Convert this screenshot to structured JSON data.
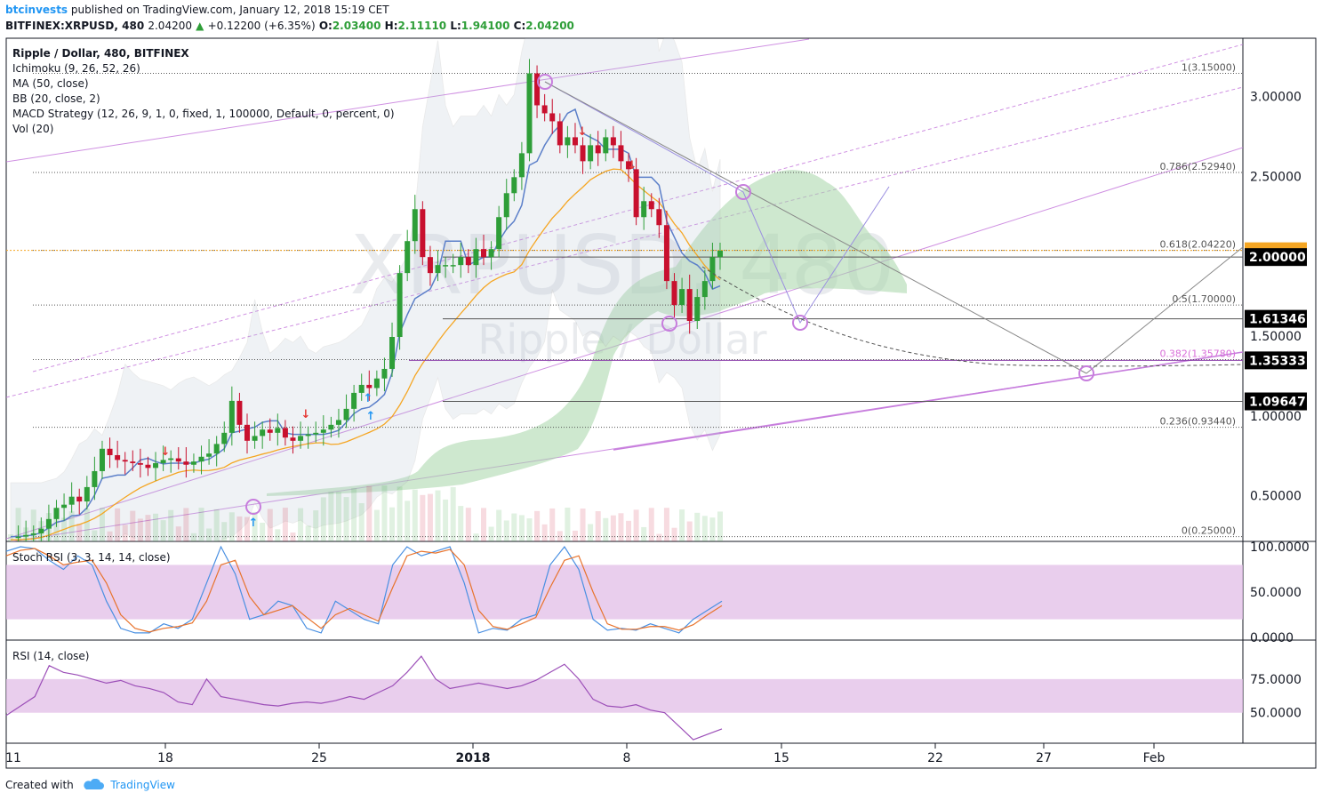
{
  "header": {
    "author": "btcinvests",
    "published_text": "published on TradingView.com, January 12, 2018 15:19 CET",
    "symbol": "BITFINEX:XRPUSD, 480",
    "last": "2.04200",
    "change": "+0.12200 (+6.35%)",
    "open_label": "O:",
    "open": "2.03400",
    "high_label": "H:",
    "high": "2.11110",
    "low_label": "L:",
    "low": "1.94100",
    "close_label": "C:",
    "close": "2.04200"
  },
  "legend": {
    "title": "Ripple / Dollar, 480, BITFINEX",
    "items": [
      "Ichimoku (9, 26, 52, 26)",
      "MA (50, close)",
      "BB (20, close, 2)",
      "MACD Strategy (12, 26, 9, 1, 0, fixed, 1, 100000, Default, 0, percent, 0)",
      "Vol (20)"
    ]
  },
  "watermark": {
    "symbol": "XRPUSD, 480",
    "name": "Ripple / Dollar"
  },
  "footer": {
    "created_with": "Created with",
    "brand": "TradingView"
  },
  "colors": {
    "bull": "#2e9e38",
    "bear": "#c8102e",
    "cloud": "#a5d6a7",
    "ichimoku_base": "#5b7fc9",
    "ma": "#f5a623",
    "bb": "#9e9e9e",
    "channel": "#c77ddd",
    "orange_tag": "#f5a623",
    "stoch_k": "#4a90e2",
    "stoch_d": "#e8732c",
    "rsi": "#9c4fb8",
    "band": "#e1bee7"
  },
  "chart_data": [
    {
      "type": "candlestick",
      "title": "Ripple / Dollar, 480, BITFINEX",
      "x_ticks": [
        "11",
        "18",
        "25",
        "2018",
        "8",
        "15",
        "22",
        "27",
        "Feb"
      ],
      "y_ticks": [
        "3.00000",
        "2.50000",
        "1.50000",
        "1.00000",
        "0.50000"
      ],
      "ylim": [
        0.22,
        3.37
      ],
      "price_labels": [
        {
          "value": 2.0,
          "text": "2.00000"
        },
        {
          "value": 1.61346,
          "text": "1.61346"
        },
        {
          "value": 1.35333,
          "text": "1.35333"
        },
        {
          "value": 1.09647,
          "text": "1.09647"
        }
      ],
      "fib_levels": [
        {
          "value": 3.15,
          "text": "1(3.15000)"
        },
        {
          "value": 2.5294,
          "text": "0.786(2.52940)"
        },
        {
          "value": 2.0422,
          "text": "0.618(2.04220)"
        },
        {
          "value": 1.7,
          "text": "0.5(1.70000)"
        },
        {
          "value": 1.3578,
          "text": "0.382(1.35780)"
        },
        {
          "value": 0.9344,
          "text": "0.236(0.93440)"
        },
        {
          "value": 0.25,
          "text": "0(0.25000)"
        }
      ],
      "closes": [
        0.25,
        0.25,
        0.26,
        0.27,
        0.3,
        0.36,
        0.43,
        0.45,
        0.5,
        0.47,
        0.56,
        0.66,
        0.8,
        0.76,
        0.73,
        0.72,
        0.71,
        0.7,
        0.68,
        0.71,
        0.73,
        0.74,
        0.72,
        0.7,
        0.72,
        0.75,
        0.77,
        0.83,
        0.9,
        1.1,
        0.95,
        0.85,
        0.88,
        0.92,
        0.9,
        0.93,
        0.87,
        0.85,
        0.88,
        0.89,
        0.9,
        0.92,
        0.95,
        0.98,
        1.05,
        1.15,
        1.2,
        1.18,
        1.24,
        1.3,
        1.5,
        1.9,
        2.1,
        2.3,
        2.0,
        1.9,
        1.95,
        1.95,
        1.95,
        2.0,
        1.95,
        2.05,
        2.0,
        2.05,
        2.25,
        2.4,
        2.5,
        2.65,
        3.15,
        2.95,
        2.9,
        2.85,
        2.7,
        2.75,
        2.7,
        2.6,
        2.7,
        2.65,
        2.75,
        2.7,
        2.6,
        2.55,
        2.25,
        2.35,
        2.3,
        2.2,
        1.85,
        1.7,
        1.8,
        1.6,
        1.75,
        1.85,
        2.0,
        2.04
      ]
    },
    {
      "type": "line",
      "title": "Stoch RSI (3, 3, 14, 14, close)",
      "y_ticks": [
        "100.0000",
        "50.0000",
        "0.0000"
      ],
      "ylim": [
        0,
        100
      ],
      "series": [
        {
          "name": "K",
          "values": [
            95,
            100,
            98,
            85,
            75,
            90,
            80,
            40,
            10,
            5,
            5,
            15,
            10,
            20,
            60,
            100,
            70,
            20,
            25,
            40,
            35,
            10,
            5,
            40,
            30,
            20,
            15,
            80,
            100,
            90,
            95,
            100,
            60,
            5,
            10,
            8,
            20,
            25,
            80,
            100,
            75,
            20,
            8,
            10,
            8,
            15,
            10,
            5,
            20,
            30,
            40
          ]
        },
        {
          "name": "D",
          "values": [
            90,
            96,
            98,
            90,
            80,
            83,
            85,
            60,
            25,
            10,
            6,
            10,
            12,
            16,
            40,
            80,
            85,
            45,
            25,
            30,
            35,
            22,
            10,
            25,
            32,
            25,
            18,
            55,
            90,
            95,
            93,
            97,
            80,
            30,
            12,
            9,
            15,
            22,
            55,
            85,
            90,
            50,
            15,
            9,
            9,
            12,
            12,
            8,
            14,
            25,
            35
          ]
        }
      ]
    },
    {
      "type": "line",
      "title": "RSI (14, close)",
      "y_ticks": [
        "75.0000",
        "50.0000"
      ],
      "ylim": [
        30,
        100
      ],
      "series": [
        {
          "name": "RSI",
          "values": [
            48,
            55,
            62,
            85,
            80,
            78,
            75,
            72,
            74,
            70,
            68,
            65,
            58,
            56,
            75,
            62,
            60,
            58,
            56,
            55,
            57,
            58,
            57,
            59,
            62,
            60,
            65,
            70,
            80,
            92,
            75,
            68,
            70,
            72,
            70,
            68,
            70,
            74,
            80,
            86,
            75,
            60,
            55,
            54,
            56,
            52,
            50,
            40,
            30,
            34,
            38
          ]
        }
      ]
    }
  ]
}
